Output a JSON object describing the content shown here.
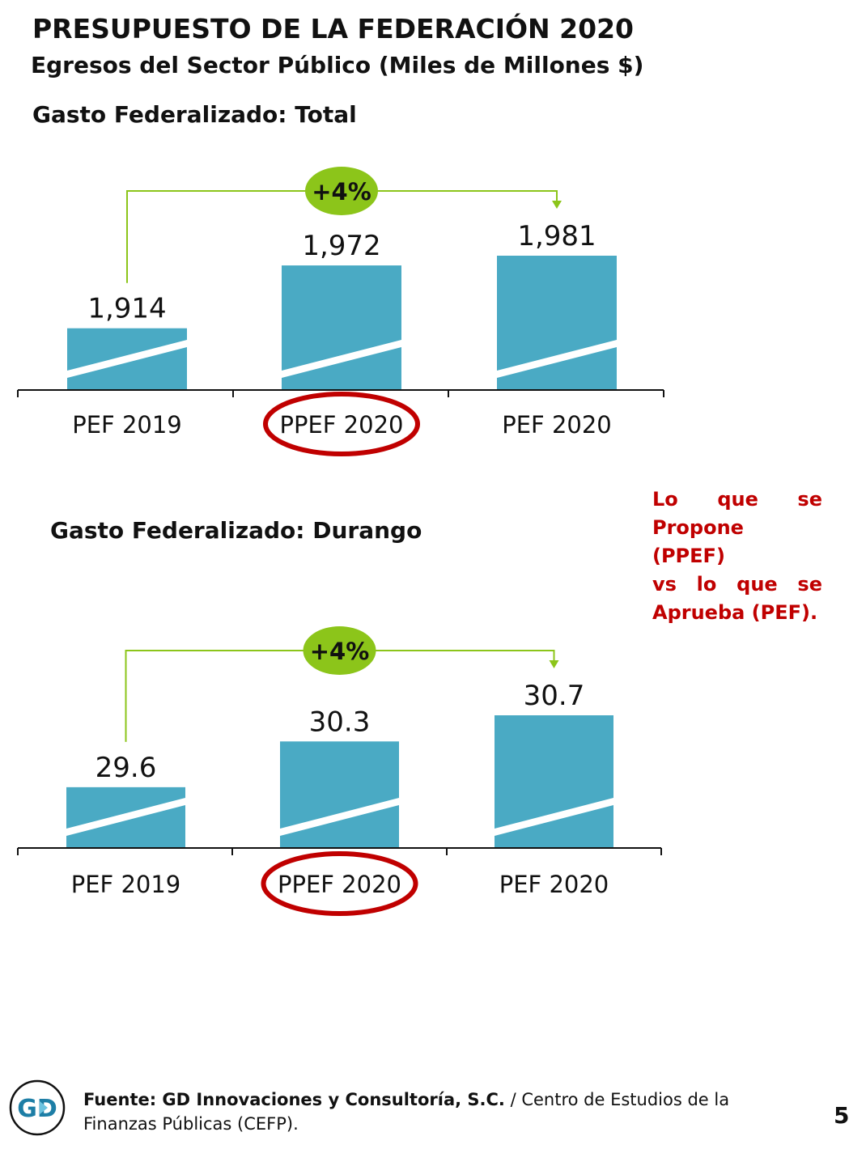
{
  "header": {
    "title": "PRESUPUESTO DE LA FEDERACIÓN 2020",
    "subtitle": "Egresos del Sector Público (Miles de Millones $)"
  },
  "note": {
    "lines": [
      "Lo que se",
      "Propone (PPEF)",
      "vs lo que se",
      "Aprueba (PEF)."
    ],
    "color": "#c00000"
  },
  "footer": {
    "source_bold": "Fuente: GD Innovaciones y Consultoría, S.C.",
    "source_rest": " / Centro de Estudios de la",
    "source_line2": "Finanzas Públicas (CEFP).",
    "logo_text": "GD",
    "page_number": "5"
  },
  "colors": {
    "bar": "#4aaac4",
    "growth_badge": "#8cc51a",
    "highlight_ring": "#c00000",
    "connector": "#8cc51a"
  },
  "chart_data": [
    {
      "type": "bar",
      "title": "Gasto Federalizado: Total",
      "categories": [
        "PEF 2019",
        "PPEF 2020",
        "PEF 2020"
      ],
      "values": [
        1914,
        1972,
        1981
      ],
      "value_labels": [
        "1,914",
        "1,972",
        "1,981"
      ],
      "highlighted_category": "PPEF 2020",
      "growth_label": "+4%",
      "growth_from": "PEF 2019",
      "growth_to": "PEF 2020",
      "ylim": [
        1857,
        1981
      ],
      "grid": false
    },
    {
      "type": "bar",
      "title": "Gasto Federalizado: Durango",
      "categories": [
        "PEF 2019",
        "PPEF 2020",
        "PEF 2020"
      ],
      "values": [
        29.6,
        30.3,
        30.7
      ],
      "value_labels": [
        "29.6",
        "30.3",
        "30.7"
      ],
      "highlighted_category": "PPEF 2020",
      "growth_label": "+4%",
      "growth_from": "PEF 2019",
      "growth_to": "PEF 2020",
      "ylim": [
        28.67,
        30.7
      ],
      "grid": false
    }
  ]
}
